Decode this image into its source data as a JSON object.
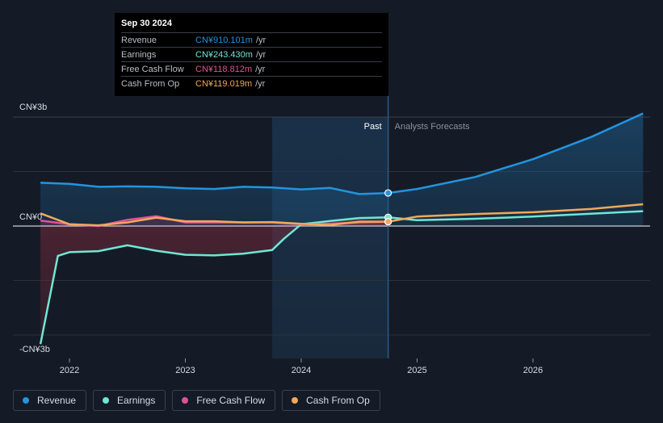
{
  "tooltip": {
    "date": "Sep 30 2024",
    "rows": [
      {
        "label": "Revenue",
        "value": "CN¥910.101m",
        "unit": "/yr",
        "color": "#2394df"
      },
      {
        "label": "Earnings",
        "value": "CN¥243.430m",
        "unit": "/yr",
        "color": "#6ee7d3"
      },
      {
        "label": "Free Cash Flow",
        "value": "CN¥118.812m",
        "unit": "/yr",
        "color": "#e05297"
      },
      {
        "label": "Cash From Op",
        "value": "CN¥119.019m",
        "unit": "/yr",
        "color": "#f0a85a"
      }
    ]
  },
  "legend": [
    {
      "label": "Revenue",
      "color": "#2394df"
    },
    {
      "label": "Earnings",
      "color": "#6ee7d3"
    },
    {
      "label": "Free Cash Flow",
      "color": "#e05297"
    },
    {
      "label": "Cash From Op",
      "color": "#f0a85a"
    }
  ],
  "chart_data": {
    "type": "line",
    "y_unit": "CN¥ bn",
    "ylim": [
      -3.0,
      3.0
    ],
    "xlim": [
      2021.7,
      2026.95
    ],
    "y_tick_labels": [
      {
        "value": 3,
        "label": "CN¥3b"
      },
      {
        "value": 0,
        "label": "CN¥0"
      },
      {
        "value": -3,
        "label": "-CN¥3b"
      }
    ],
    "x_ticks": [
      {
        "value": 2022,
        "label": "2022"
      },
      {
        "value": 2023,
        "label": "2023"
      },
      {
        "value": 2024,
        "label": "2024"
      },
      {
        "value": 2025,
        "label": "2025"
      },
      {
        "value": 2026,
        "label": "2026"
      }
    ],
    "past_region_start": 2023.75,
    "divider": 2024.75,
    "past_label": "Past",
    "forecast_label": "Analysts Forecasts",
    "series": [
      {
        "name": "Revenue",
        "color": "#2394df",
        "fill": true,
        "points": [
          [
            2021.75,
            1.19
          ],
          [
            2022.0,
            1.16
          ],
          [
            2022.25,
            1.08
          ],
          [
            2022.5,
            1.09
          ],
          [
            2022.75,
            1.08
          ],
          [
            2023.0,
            1.04
          ],
          [
            2023.25,
            1.02
          ],
          [
            2023.5,
            1.08
          ],
          [
            2023.75,
            1.06
          ],
          [
            2024.0,
            1.01
          ],
          [
            2024.25,
            1.05
          ],
          [
            2024.5,
            0.88
          ],
          [
            2024.75,
            0.91
          ]
        ],
        "forecast": [
          [
            2024.75,
            0.91
          ],
          [
            2025.0,
            1.02
          ],
          [
            2025.5,
            1.35
          ],
          [
            2026.0,
            1.84
          ],
          [
            2026.5,
            2.45
          ],
          [
            2026.95,
            3.1
          ]
        ]
      },
      {
        "name": "Earnings",
        "color": "#6ee7d3",
        "fill": true,
        "points": [
          [
            2021.75,
            -3.25
          ],
          [
            2021.9,
            -0.82
          ],
          [
            2022.0,
            -0.72
          ],
          [
            2022.25,
            -0.69
          ],
          [
            2022.5,
            -0.53
          ],
          [
            2022.75,
            -0.68
          ],
          [
            2023.0,
            -0.79
          ],
          [
            2023.25,
            -0.81
          ],
          [
            2023.5,
            -0.76
          ],
          [
            2023.75,
            -0.66
          ],
          [
            2023.85,
            -0.35
          ],
          [
            2024.0,
            0.05
          ],
          [
            2024.25,
            0.14
          ],
          [
            2024.5,
            0.22
          ],
          [
            2024.75,
            0.24
          ]
        ],
        "forecast": [
          [
            2024.75,
            0.24
          ],
          [
            2025.0,
            0.16
          ],
          [
            2025.5,
            0.2
          ],
          [
            2026.0,
            0.26
          ],
          [
            2026.5,
            0.34
          ],
          [
            2026.95,
            0.41
          ]
        ]
      },
      {
        "name": "Free Cash Flow",
        "color": "#e05297",
        "fill": true,
        "points": [
          [
            2021.75,
            0.15
          ],
          [
            2022.0,
            0.05
          ],
          [
            2022.25,
            0.0
          ],
          [
            2022.5,
            0.17
          ],
          [
            2022.75,
            0.27
          ],
          [
            2023.0,
            0.1
          ],
          [
            2023.25,
            0.1
          ],
          [
            2023.5,
            0.1
          ],
          [
            2023.75,
            0.1
          ],
          [
            2024.0,
            0.05
          ],
          [
            2024.25,
            0.06
          ],
          [
            2024.5,
            0.1
          ],
          [
            2024.75,
            0.12
          ]
        ],
        "forecast": []
      },
      {
        "name": "Cash From Op",
        "color": "#f0a85a",
        "fill": false,
        "points": [
          [
            2021.75,
            0.35
          ],
          [
            2022.0,
            0.05
          ],
          [
            2022.25,
            0.02
          ],
          [
            2022.5,
            0.1
          ],
          [
            2022.75,
            0.23
          ],
          [
            2023.0,
            0.13
          ],
          [
            2023.25,
            0.13
          ],
          [
            2023.5,
            0.1
          ],
          [
            2023.75,
            0.11
          ],
          [
            2024.0,
            0.06
          ],
          [
            2024.25,
            0.03
          ],
          [
            2024.5,
            0.12
          ],
          [
            2024.75,
            0.12
          ]
        ],
        "forecast": [
          [
            2024.75,
            0.12
          ],
          [
            2025.0,
            0.26
          ],
          [
            2025.5,
            0.33
          ],
          [
            2026.0,
            0.38
          ],
          [
            2026.5,
            0.47
          ],
          [
            2026.95,
            0.6
          ]
        ]
      }
    ],
    "highlight_x": 2024.75
  }
}
